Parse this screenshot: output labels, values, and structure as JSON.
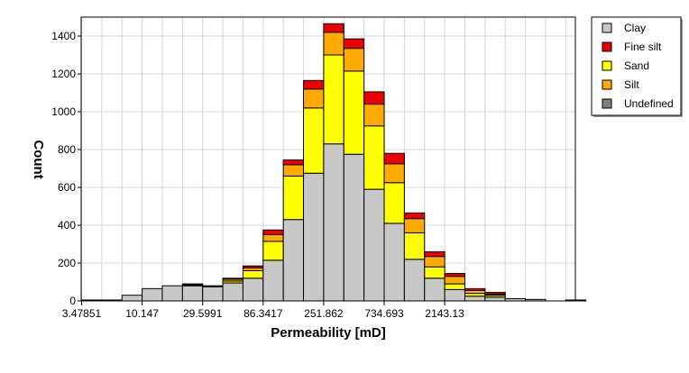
{
  "chart_data": {
    "type": "bar",
    "stacked": true,
    "x_scale": "log",
    "xlabel": "Permeability [mD]",
    "ylabel": "Count",
    "ylim": [
      0,
      1500
    ],
    "y_ticks": [
      0,
      200,
      400,
      600,
      800,
      1000,
      1200,
      1400
    ],
    "x_ticks": [
      "3.47851",
      "10.147",
      "29.5991",
      "86.3417",
      "251.862",
      "734.693",
      "2143.13"
    ],
    "grid": true,
    "legend_position": "right",
    "bins": [
      "3.48-4.6",
      "4.6-6.1",
      "6.1-8.1",
      "8.1-10.1",
      "10.1-13.4",
      "13.4-17.7",
      "17.7-23.4",
      "23.4-29.6",
      "29.6-39.1",
      "39.1-51.7",
      "51.7-68.3",
      "68.3-86.3",
      "86.3-114",
      "114-151",
      "151-199",
      "199-252",
      "252-333",
      "333-440",
      "440-581",
      "581-735",
      "735-970",
      "970-1283",
      "1283-1695",
      "1695-2143",
      "2143-2831"
    ],
    "series": [
      {
        "name": "Clay",
        "color": "#c8c8c8",
        "values": [
          5,
          5,
          30,
          65,
          80,
          80,
          75,
          95,
          120,
          215,
          430,
          675,
          830,
          775,
          590,
          410,
          220,
          120,
          60,
          25,
          20,
          12,
          8,
          0,
          5
        ]
      },
      {
        "name": "Undefined",
        "color": "#808080",
        "values": [
          0,
          0,
          0,
          0,
          0,
          0,
          0,
          0,
          0,
          0,
          0,
          0,
          0,
          0,
          0,
          0,
          0,
          0,
          0,
          0,
          0,
          0,
          0,
          0,
          0
        ]
      },
      {
        "name": "Sand",
        "color": "#ffff00",
        "values": [
          0,
          0,
          0,
          0,
          0,
          0,
          0,
          10,
          40,
          100,
          230,
          345,
          470,
          440,
          335,
          215,
          140,
          60,
          30,
          15,
          10,
          0,
          0,
          0,
          0
        ]
      },
      {
        "name": "Silt",
        "color": "#ffaa00",
        "values": [
          0,
          0,
          0,
          0,
          0,
          5,
          5,
          10,
          15,
          35,
          60,
          100,
          120,
          120,
          115,
          100,
          75,
          55,
          40,
          15,
          5,
          0,
          0,
          0,
          0
        ]
      },
      {
        "name": "Fine silt",
        "color": "#ee0000",
        "values": [
          0,
          0,
          0,
          0,
          0,
          5,
          0,
          5,
          10,
          25,
          25,
          45,
          45,
          50,
          65,
          55,
          30,
          25,
          15,
          10,
          10,
          0,
          0,
          0,
          0
        ]
      }
    ],
    "legend": [
      {
        "name": "Clay",
        "color": "#c8c8c8"
      },
      {
        "name": "Fine silt",
        "color": "#ee0000"
      },
      {
        "name": "Sand",
        "color": "#ffff00"
      },
      {
        "name": "Silt",
        "color": "#ffaa00"
      },
      {
        "name": "Undefined",
        "color": "#808080"
      }
    ]
  }
}
